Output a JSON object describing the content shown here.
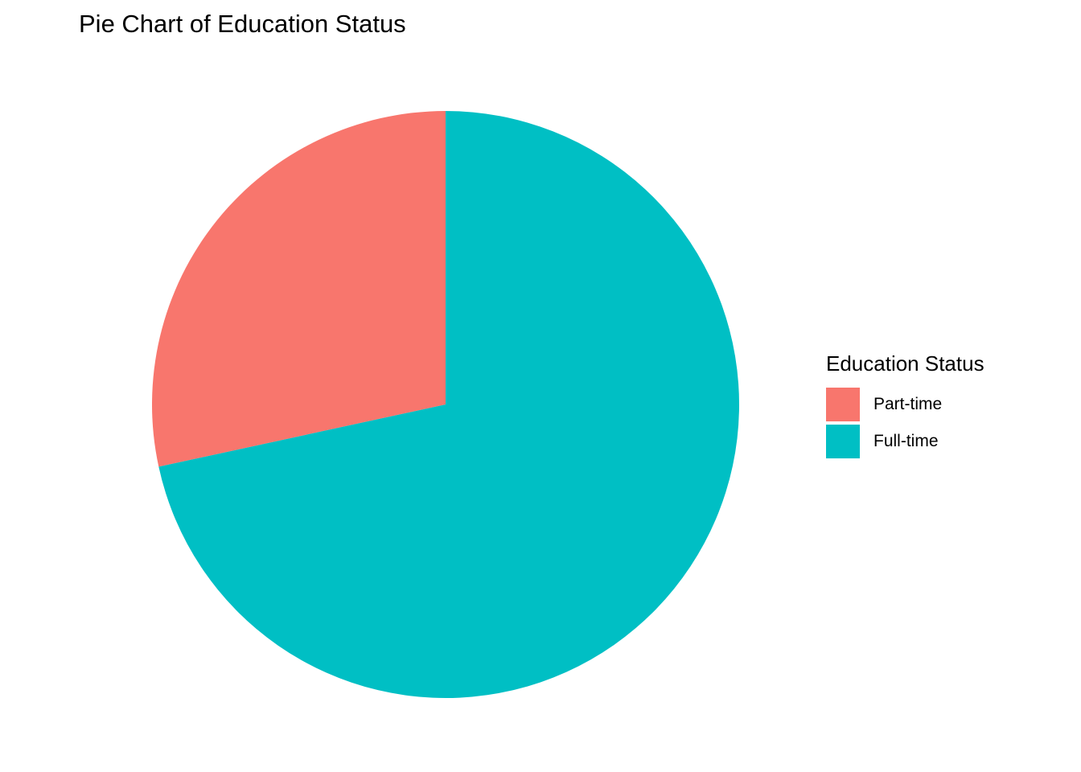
{
  "chart_data": {
    "type": "pie",
    "title": "Pie Chart of Education Status",
    "legend": {
      "title": "Education Status",
      "placement": "right"
    },
    "categories": [
      "Part-time",
      "Full-time"
    ],
    "values": [
      28.4,
      71.6
    ],
    "colors": [
      "#F8766D",
      "#00BFC4"
    ],
    "grid": false
  }
}
